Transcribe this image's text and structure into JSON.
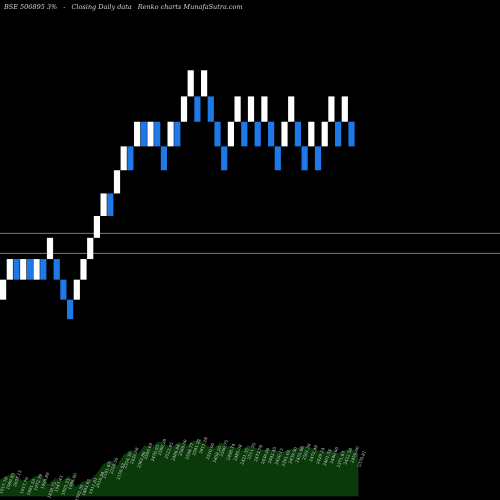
{
  "header": {
    "code": "BSE 506895 3%",
    "arrows": "-",
    "subtitle": "Closing Daily data",
    "brand": "Renko  charts MunafaSutra.com"
  },
  "colors": {
    "background": "#000000",
    "up_brick": "#ffffff",
    "down_brick": "#1e78e6",
    "line": "#c8641e",
    "volume": "#0a3a0a"
  },
  "chart_data": {
    "type": "renko",
    "brick_size_pct": 3,
    "reference_lines": [
      2200,
      2140
    ],
    "ylim": [
      1400,
      2900
    ],
    "bricks": [
      {
        "dir": "up",
        "low": 2000.95,
        "high": 2060.98
      },
      {
        "dir": "up",
        "low": 2060.98,
        "high": 2122.81
      },
      {
        "dir": "down",
        "low": 2060.98,
        "high": 2122.81
      },
      {
        "dir": "up",
        "low": 2060.98,
        "high": 2122.81
      },
      {
        "dir": "down",
        "low": 2060.98,
        "high": 2122.81
      },
      {
        "dir": "up",
        "low": 2060.98,
        "high": 2122.81
      },
      {
        "dir": "down",
        "low": 2060.98,
        "high": 2122.81
      },
      {
        "dir": "up",
        "low": 2122.81,
        "high": 2186.49
      },
      {
        "dir": "down",
        "low": 2060.98,
        "high": 2122.81
      },
      {
        "dir": "down",
        "low": 2000.95,
        "high": 2060.98
      },
      {
        "dir": "down",
        "low": 1942.67,
        "high": 2000.95
      },
      {
        "dir": "up",
        "low": 2000.95,
        "high": 2060.98
      },
      {
        "dir": "up",
        "low": 2060.98,
        "high": 2122.81
      },
      {
        "dir": "up",
        "low": 2122.81,
        "high": 2186.49
      },
      {
        "dir": "up",
        "low": 2186.49,
        "high": 2252.09
      },
      {
        "dir": "up",
        "low": 2252.09,
        "high": 2319.65
      },
      {
        "dir": "down",
        "low": 2252.09,
        "high": 2319.65
      },
      {
        "dir": "up",
        "low": 2319.65,
        "high": 2389.24
      },
      {
        "dir": "up",
        "low": 2389.24,
        "high": 2460.92
      },
      {
        "dir": "down",
        "low": 2389.24,
        "high": 2460.92
      },
      {
        "dir": "up",
        "low": 2460.92,
        "high": 2534.75
      },
      {
        "dir": "down",
        "low": 2460.92,
        "high": 2534.75
      },
      {
        "dir": "up",
        "low": 2460.92,
        "high": 2534.75
      },
      {
        "dir": "down",
        "low": 2460.92,
        "high": 2534.75
      },
      {
        "dir": "down",
        "low": 2389.24,
        "high": 2460.92
      },
      {
        "dir": "up",
        "low": 2460.92,
        "high": 2534.75
      },
      {
        "dir": "down",
        "low": 2460.92,
        "high": 2534.75
      },
      {
        "dir": "up",
        "low": 2534.75,
        "high": 2610.79
      },
      {
        "dir": "up",
        "low": 2610.79,
        "high": 2689.11
      },
      {
        "dir": "down",
        "low": 2534.75,
        "high": 2610.79
      },
      {
        "dir": "up",
        "low": 2610.79,
        "high": 2689.11
      },
      {
        "dir": "down",
        "low": 2534.75,
        "high": 2610.79
      },
      {
        "dir": "down",
        "low": 2460.92,
        "high": 2534.75
      },
      {
        "dir": "down",
        "low": 2389.24,
        "high": 2460.92
      },
      {
        "dir": "up",
        "low": 2460.92,
        "high": 2534.75
      },
      {
        "dir": "up",
        "low": 2534.75,
        "high": 2610.79
      },
      {
        "dir": "down",
        "low": 2460.92,
        "high": 2534.75
      },
      {
        "dir": "up",
        "low": 2534.75,
        "high": 2610.79
      },
      {
        "dir": "down",
        "low": 2460.92,
        "high": 2534.75
      },
      {
        "dir": "up",
        "low": 2534.75,
        "high": 2610.79
      },
      {
        "dir": "down",
        "low": 2460.92,
        "high": 2534.75
      },
      {
        "dir": "down",
        "low": 2389.24,
        "high": 2460.92
      },
      {
        "dir": "up",
        "low": 2460.92,
        "high": 2534.75
      },
      {
        "dir": "up",
        "low": 2534.75,
        "high": 2610.79
      },
      {
        "dir": "down",
        "low": 2460.92,
        "high": 2534.75
      },
      {
        "dir": "down",
        "low": 2389.24,
        "high": 2460.92
      },
      {
        "dir": "up",
        "low": 2460.92,
        "high": 2534.75
      },
      {
        "dir": "down",
        "low": 2389.24,
        "high": 2460.92
      },
      {
        "dir": "up",
        "low": 2460.92,
        "high": 2534.75
      },
      {
        "dir": "up",
        "low": 2534.75,
        "high": 2610.79
      },
      {
        "dir": "down",
        "low": 2460.92,
        "high": 2534.75
      },
      {
        "dir": "up",
        "low": 2534.75,
        "high": 2610.79
      },
      {
        "dir": "down",
        "low": 2460.92,
        "high": 2534.75
      }
    ],
    "labels": [
      "1917.79",
      "1989.83",
      "2037.13",
      "1917.79",
      "1891.55",
      "1972.79",
      "1998.89",
      "1838.72",
      "1947.43",
      "1893.33",
      "1988.60",
      "1792.35",
      "1883.83",
      "1911.61",
      "2016.94",
      "2181.63",
      "2256.50",
      "2159.93",
      "2354.30",
      "2432.68",
      "2362.80",
      "2509.69",
      "2476.93",
      "2580.28",
      "2523.45",
      "2486.84",
      "2569.60",
      "2508.77",
      "2581.92",
      "2611.28",
      "2510.00",
      "2458.20",
      "2560.75",
      "2498.74",
      "2485.08",
      "2421.35",
      "2511.70",
      "2473.78",
      "2430.00",
      "2442.45",
      "2420.15",
      "2391.02",
      "2439.50",
      "2455.66",
      "2501.30",
      "2472.48",
      "2429.24",
      "2401.53",
      "2440.00",
      "2371.87",
      "2422.58",
      "2450.00",
      "2376.81"
    ]
  }
}
